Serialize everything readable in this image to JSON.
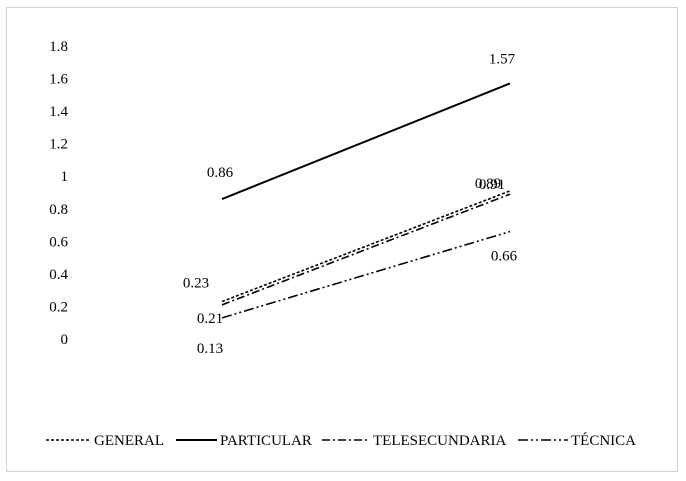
{
  "chart_data": {
    "type": "line",
    "categories": [
      "",
      ""
    ],
    "ylim": [
      0,
      1.8
    ],
    "yticks": [
      "0",
      "0.2",
      "0.4",
      "0.6",
      "0.8",
      "1",
      "1.2",
      "1.4",
      "1.6",
      "1.8"
    ],
    "grid": false,
    "legend_position": "bottom",
    "series": [
      {
        "name": "GENERAL",
        "values": [
          0.23,
          0.91
        ],
        "labels": [
          "0.23",
          "0.91"
        ],
        "dash": "3,2",
        "color": "#000000"
      },
      {
        "name": "PARTICULAR",
        "values": [
          0.86,
          1.57
        ],
        "labels": [
          "0.86",
          "1.57"
        ],
        "dash": "",
        "color": "#000000"
      },
      {
        "name": "TELESECUNDARIA",
        "values": [
          0.21,
          0.89
        ],
        "labels": [
          "0.21",
          "0.89"
        ],
        "dash": "8,3,2,3",
        "color": "#000000"
      },
      {
        "name": "TÉCNICA",
        "values": [
          0.13,
          0.66
        ],
        "labels": [
          "0.13",
          "0.66"
        ],
        "dash": "10,3,2,3,2,3",
        "color": "#000000"
      }
    ]
  }
}
